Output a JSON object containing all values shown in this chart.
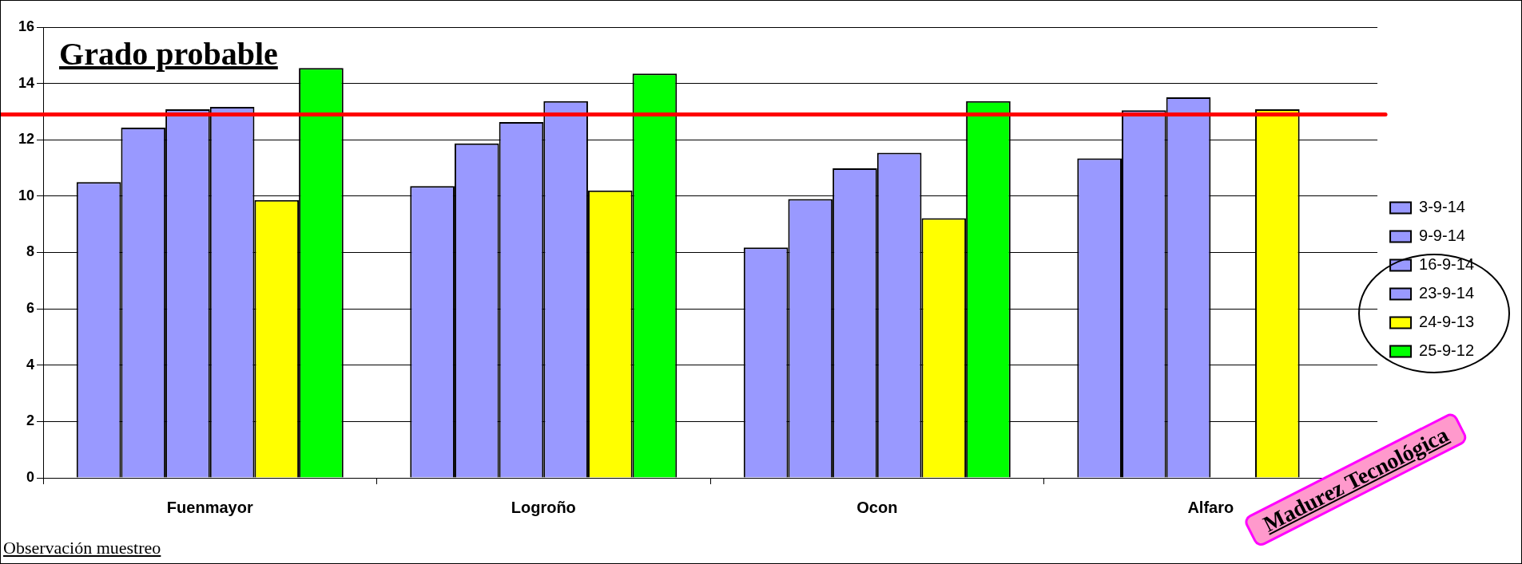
{
  "chart_data": {
    "type": "bar",
    "title": "Grado probable",
    "categories": [
      "Fuenmayor",
      "Logroño",
      "Ocon",
      "Alfaro"
    ],
    "series": [
      {
        "name": "3-9-14",
        "color": "#9999ff",
        "values": [
          10.5,
          10.36,
          8.18,
          11.34
        ]
      },
      {
        "name": "9-9-14",
        "color": "#9999ff",
        "values": [
          12.43,
          11.87,
          9.9,
          13.05
        ]
      },
      {
        "name": "16-9-14",
        "color": "#9999ff",
        "values": [
          13.08,
          12.63,
          10.99,
          13.51
        ]
      },
      {
        "name": "23-9-14",
        "color": "#9999ff",
        "values": [
          13.17,
          13.37,
          11.54,
          null
        ]
      },
      {
        "name": "24-9-13",
        "color": "#ffff00",
        "values": [
          9.86,
          10.2,
          9.22,
          13.08
        ]
      },
      {
        "name": "25-9-12",
        "color": "#00ff00",
        "values": [
          14.55,
          14.35,
          13.37,
          null
        ]
      }
    ],
    "ylim": [
      0,
      16
    ],
    "yticks": [
      0,
      2,
      4,
      6,
      8,
      10,
      12,
      14,
      16
    ],
    "grid": "y",
    "legend": "right",
    "ref_lines": [
      {
        "axis": "y",
        "value": 12.9,
        "color": "#ff0000"
      }
    ],
    "annotations": [
      "Observación muestreo",
      "Madurez Tecnológica"
    ]
  }
}
